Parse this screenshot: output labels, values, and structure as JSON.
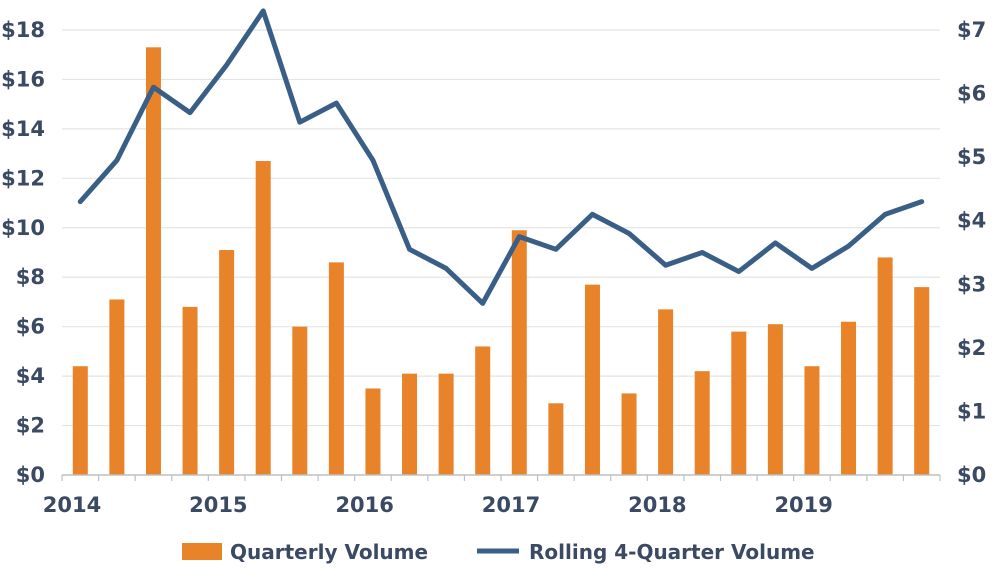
{
  "colors": {
    "bar": "#e8832a",
    "line": "#3a5f86",
    "text": "#3a4a63",
    "grid": "#e4e4e4",
    "axis": "#bfbfbf"
  },
  "chart_data": {
    "type": "bar",
    "combo": "bar-line-dual-axis",
    "title": "",
    "xlabel": "",
    "ylabel": "",
    "x_quarters": [
      "2014 Q1",
      "2014 Q2",
      "2014 Q3",
      "2014 Q4",
      "2015 Q1",
      "2015 Q2",
      "2015 Q3",
      "2015 Q4",
      "2016 Q1",
      "2016 Q2",
      "2016 Q3",
      "2016 Q4",
      "2017 Q1",
      "2017 Q2",
      "2017 Q3",
      "2017 Q4",
      "2018 Q1",
      "2018 Q2",
      "2018 Q3",
      "2018 Q4",
      "2019 Q1",
      "2019 Q2",
      "2019 Q3",
      "2019 Q4"
    ],
    "x_tick_labels": [
      "2014",
      "2015",
      "2016",
      "2017",
      "2018",
      "2019"
    ],
    "y_left": {
      "ticks": [
        "$0",
        "$2",
        "$4",
        "$6",
        "$8",
        "$10",
        "$12",
        "$14",
        "$16",
        "$18"
      ],
      "ylim": [
        0,
        18
      ]
    },
    "y_right": {
      "ticks": [
        "$0",
        "$1",
        "$2",
        "$3",
        "$4",
        "$5",
        "$6",
        "$7"
      ],
      "ylim": [
        0,
        7
      ]
    },
    "grid": true,
    "legend_position": "bottom",
    "series": [
      {
        "name": "Quarterly Volume",
        "type": "bar",
        "axis": "left",
        "values": [
          4.4,
          7.1,
          17.3,
          6.8,
          9.1,
          12.7,
          6.0,
          8.6,
          3.5,
          4.1,
          4.1,
          5.2,
          9.9,
          2.9,
          7.7,
          3.3,
          6.7,
          4.2,
          5.8,
          6.1,
          4.4,
          6.2,
          8.8,
          7.6
        ]
      },
      {
        "name": "Rolling 4-Quarter Volume",
        "type": "line",
        "axis": "right",
        "values": [
          4.3,
          4.95,
          6.1,
          5.7,
          6.45,
          7.3,
          5.55,
          5.85,
          4.95,
          3.55,
          3.25,
          2.7,
          3.75,
          3.55,
          4.1,
          3.8,
          3.3,
          3.5,
          3.2,
          3.65,
          3.25,
          3.6,
          4.1,
          4.3
        ]
      }
    ]
  }
}
